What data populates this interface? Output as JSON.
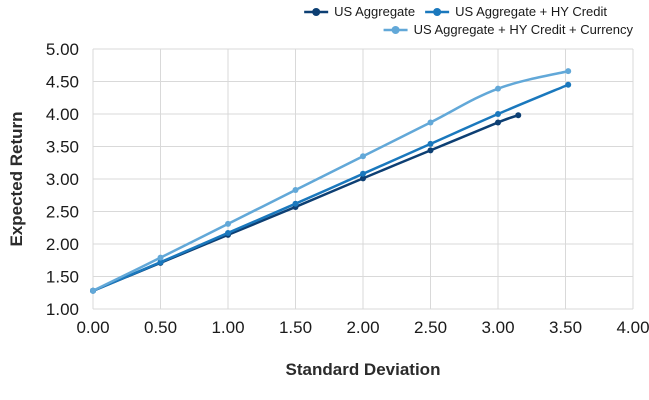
{
  "chart_data": {
    "type": "line",
    "title": "",
    "xlabel": "Standard Deviation",
    "ylabel": "Expected Return",
    "xlim": [
      0,
      4
    ],
    "ylim": [
      1,
      5
    ],
    "xticks": [
      0,
      0.5,
      1,
      1.5,
      2,
      2.5,
      3,
      3.5,
      4
    ],
    "yticks": [
      1,
      1.5,
      2,
      2.5,
      3,
      3.5,
      4,
      4.5,
      5
    ],
    "xtick_labels": [
      "0.00",
      "0.50",
      "1.00",
      "1.50",
      "2.00",
      "2.50",
      "3.00",
      "3.50",
      "4.00"
    ],
    "ytick_labels": [
      "1.00",
      "1.50",
      "2.00",
      "2.50",
      "3.00",
      "3.50",
      "4.00",
      "4.50",
      "5.00"
    ],
    "grid": true,
    "legend_position": "top-right",
    "series": [
      {
        "name": "US Aggregate",
        "color": "#0d3f73",
        "points": [
          [
            0.0,
            1.28
          ],
          [
            0.5,
            1.71
          ],
          [
            1.0,
            2.14
          ],
          [
            1.5,
            2.57
          ],
          [
            2.0,
            3.01
          ],
          [
            2.5,
            3.44
          ],
          [
            3.0,
            3.87
          ],
          [
            3.15,
            3.98
          ]
        ]
      },
      {
        "name": "US Aggregate + HY Credit",
        "color": "#1a78bd",
        "points": [
          [
            0.0,
            1.28
          ],
          [
            0.5,
            1.72
          ],
          [
            1.0,
            2.17
          ],
          [
            1.5,
            2.62
          ],
          [
            2.0,
            3.08
          ],
          [
            2.5,
            3.54
          ],
          [
            3.0,
            4.0
          ],
          [
            3.52,
            4.45
          ]
        ]
      },
      {
        "name": "US Aggregate + HY Credit + Currency",
        "color": "#62a8d8",
        "points": [
          [
            0.0,
            1.28
          ],
          [
            0.5,
            1.79
          ],
          [
            1.0,
            2.31
          ],
          [
            1.5,
            2.83
          ],
          [
            2.0,
            3.35
          ],
          [
            2.5,
            3.87
          ],
          [
            3.0,
            4.39
          ],
          [
            3.52,
            4.66
          ]
        ]
      }
    ]
  }
}
